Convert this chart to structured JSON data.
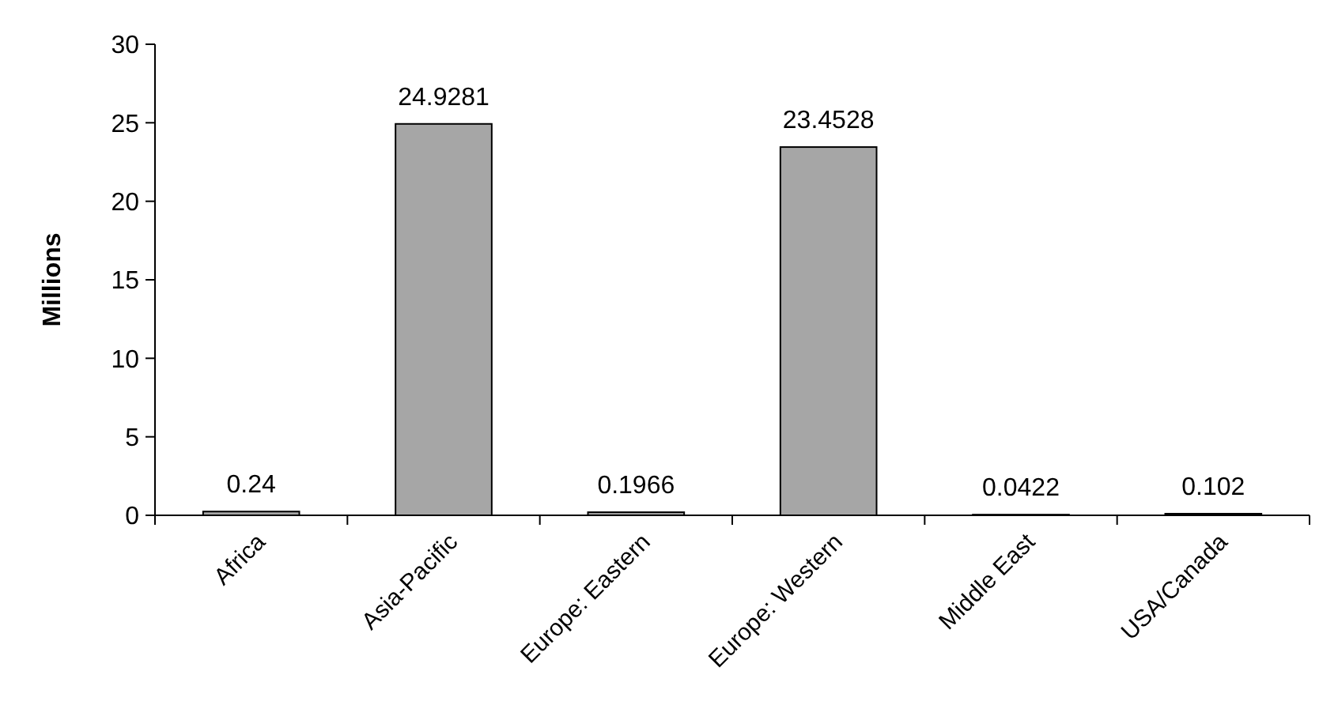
{
  "chart_data": {
    "type": "bar",
    "ylabel": "Millions",
    "categories": [
      "Africa",
      "Asia-Pacific",
      "Europe: Eastern",
      "Europe: Western",
      "Middle East",
      "USA/Canada"
    ],
    "values": [
      0.24,
      24.9281,
      0.1966,
      23.4528,
      0.0422,
      0.102
    ],
    "color": "#a6a6a6",
    "ylim": [
      0,
      30
    ],
    "yticks": [
      0,
      5,
      10,
      15,
      20,
      25,
      30
    ],
    "grid": false,
    "data_labels": true
  }
}
